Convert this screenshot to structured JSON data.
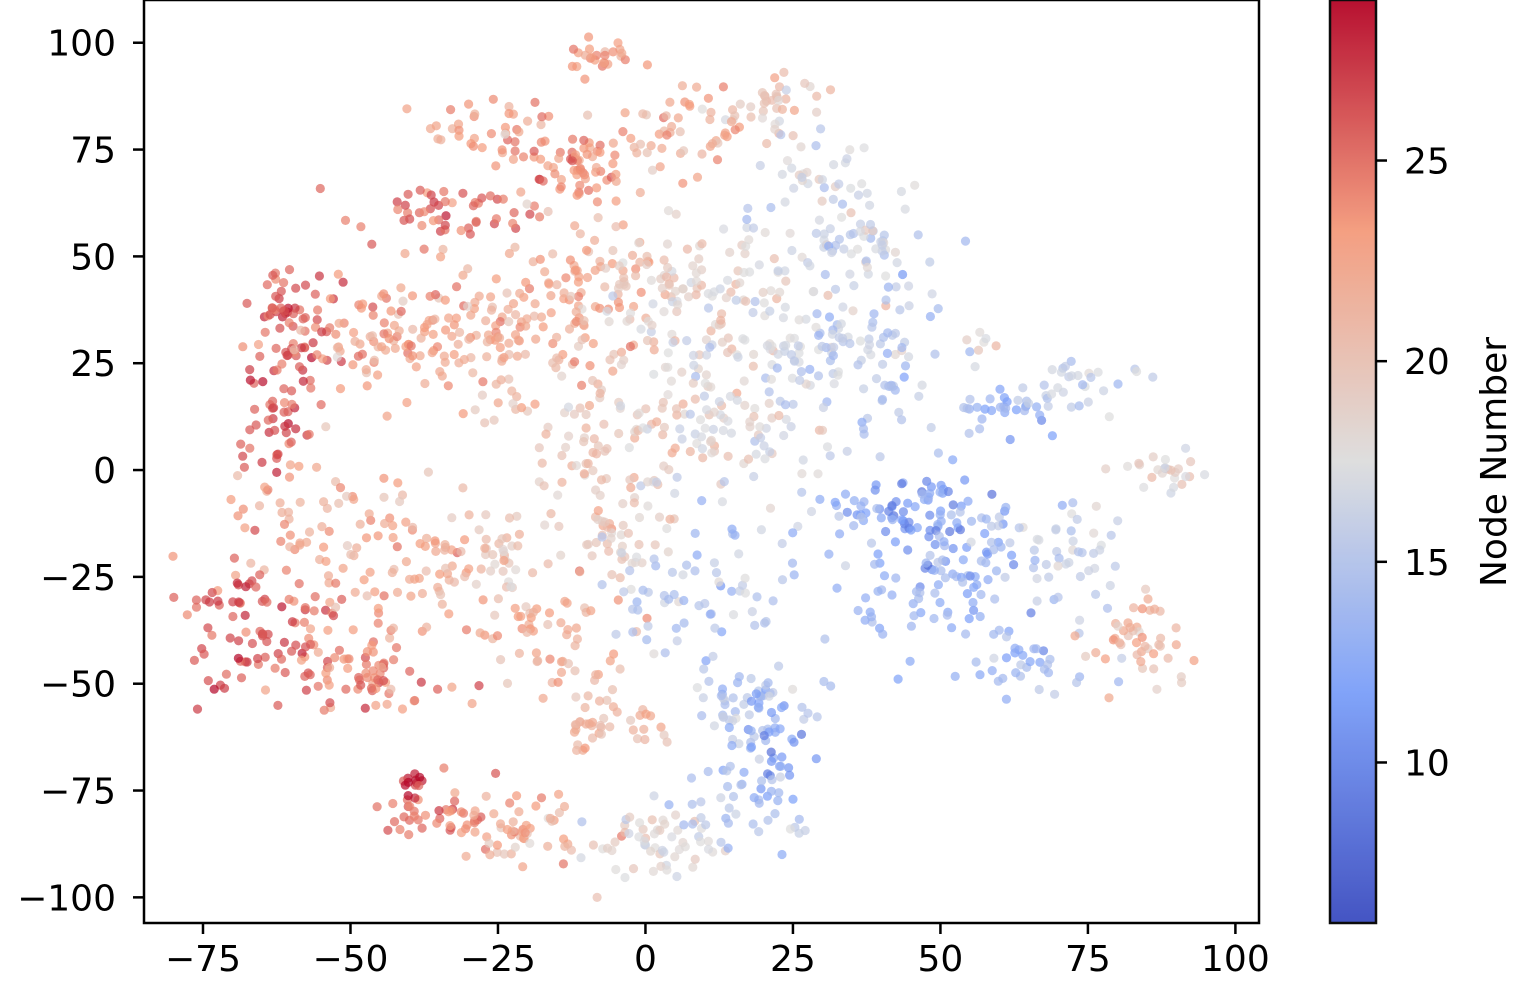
{
  "chart_data": {
    "type": "scatter",
    "title": "",
    "xlabel": "",
    "ylabel": "",
    "xlim": [
      -85,
      104
    ],
    "ylim": [
      -106,
      110
    ],
    "x_ticks": [
      -75,
      -50,
      -25,
      0,
      25,
      50,
      75,
      100
    ],
    "x_tick_labels": [
      "−75",
      "−50",
      "−25",
      "0",
      "25",
      "50",
      "75",
      "100"
    ],
    "y_ticks": [
      100,
      75,
      50,
      25,
      0,
      -25,
      -50,
      -75,
      -100
    ],
    "y_tick_labels": [
      "100",
      "75",
      "50",
      "25",
      "0",
      "−25",
      "−50",
      "−75",
      "−100"
    ],
    "grid": false,
    "point_alpha": 0.7,
    "colormap": "coolwarm",
    "colorbar": {
      "label": "Node Number",
      "range": [
        6,
        29
      ],
      "ticks": [
        10,
        15,
        20,
        25
      ],
      "tick_labels": [
        "10",
        "15",
        "20",
        "25"
      ],
      "low_color": "#3b4cc0",
      "mid_color": "#dddddd",
      "high_color": "#b40426"
    },
    "series": [
      {
        "clusters": [
          {
            "cx": -8,
            "cy": 97,
            "sx": 3,
            "sy": 3,
            "n": 25,
            "value": 23
          },
          {
            "cx": -25,
            "cy": 80,
            "sx": 6,
            "sy": 4,
            "n": 40,
            "value": 23
          },
          {
            "cx": -12,
            "cy": 70,
            "sx": 5,
            "sy": 5,
            "n": 60,
            "value": 24
          },
          {
            "cx": 5,
            "cy": 78,
            "sx": 6,
            "sy": 5,
            "n": 50,
            "value": 22
          },
          {
            "cx": 22,
            "cy": 85,
            "sx": 6,
            "sy": 4,
            "n": 35,
            "value": 20
          },
          {
            "cx": 30,
            "cy": 75,
            "sx": 5,
            "sy": 8,
            "n": 30,
            "value": 17
          },
          {
            "cx": -35,
            "cy": 60,
            "sx": 7,
            "sy": 4,
            "n": 50,
            "value": 25
          },
          {
            "cx": -60,
            "cy": 35,
            "sx": 4,
            "sy": 6,
            "n": 60,
            "value": 26
          },
          {
            "cx": -63,
            "cy": 15,
            "sx": 3,
            "sy": 8,
            "n": 50,
            "value": 26
          },
          {
            "cx": -45,
            "cy": 30,
            "sx": 7,
            "sy": 7,
            "n": 80,
            "value": 23
          },
          {
            "cx": -25,
            "cy": 30,
            "sx": 9,
            "sy": 9,
            "n": 100,
            "value": 22
          },
          {
            "cx": -10,
            "cy": 45,
            "sx": 8,
            "sy": 9,
            "n": 90,
            "value": 22
          },
          {
            "cx": 10,
            "cy": 40,
            "sx": 10,
            "sy": 10,
            "n": 110,
            "value": 19
          },
          {
            "cx": 25,
            "cy": 30,
            "sx": 8,
            "sy": 10,
            "n": 90,
            "value": 17
          },
          {
            "cx": 35,
            "cy": 55,
            "sx": 8,
            "sy": 6,
            "n": 70,
            "value": 16
          },
          {
            "cx": 40,
            "cy": 25,
            "sx": 6,
            "sy": 10,
            "n": 60,
            "value": 15
          },
          {
            "cx": -5,
            "cy": 10,
            "sx": 12,
            "sy": 8,
            "n": 100,
            "value": 20
          },
          {
            "cx": 15,
            "cy": 10,
            "sx": 9,
            "sy": 8,
            "n": 70,
            "value": 17
          },
          {
            "cx": -55,
            "cy": -10,
            "sx": 9,
            "sy": 7,
            "n": 60,
            "value": 22
          },
          {
            "cx": -70,
            "cy": -35,
            "sx": 5,
            "sy": 8,
            "n": 60,
            "value": 26
          },
          {
            "cx": -55,
            "cy": -40,
            "sx": 6,
            "sy": 8,
            "n": 60,
            "value": 25
          },
          {
            "cx": -45,
            "cy": -48,
            "sx": 5,
            "sy": 5,
            "n": 40,
            "value": 24
          },
          {
            "cx": -38,
            "cy": -25,
            "sx": 7,
            "sy": 7,
            "n": 60,
            "value": 22
          },
          {
            "cx": -25,
            "cy": -20,
            "sx": 5,
            "sy": 6,
            "n": 40,
            "value": 20
          },
          {
            "cx": -15,
            "cy": -40,
            "sx": 7,
            "sy": 9,
            "n": 60,
            "value": 22
          },
          {
            "cx": -5,
            "cy": -15,
            "sx": 6,
            "sy": 8,
            "n": 50,
            "value": 19
          },
          {
            "cx": 10,
            "cy": -30,
            "sx": 8,
            "sy": 9,
            "n": 70,
            "value": 15
          },
          {
            "cx": 18,
            "cy": -55,
            "sx": 6,
            "sy": 6,
            "n": 50,
            "value": 15
          },
          {
            "cx": 22,
            "cy": -65,
            "sx": 4,
            "sy": 6,
            "n": 40,
            "value": 12
          },
          {
            "cx": -8,
            "cy": -60,
            "sx": 7,
            "sy": 6,
            "n": 40,
            "value": 21
          },
          {
            "cx": -35,
            "cy": -80,
            "sx": 5,
            "sy": 4,
            "n": 40,
            "value": 25
          },
          {
            "cx": -20,
            "cy": -85,
            "sx": 6,
            "sy": 4,
            "n": 50,
            "value": 22
          },
          {
            "cx": 0,
            "cy": -88,
            "sx": 7,
            "sy": 4,
            "n": 60,
            "value": 18
          },
          {
            "cx": 15,
            "cy": -80,
            "sx": 6,
            "sy": 5,
            "n": 40,
            "value": 15
          },
          {
            "cx": -39,
            "cy": -73,
            "sx": 1.2,
            "sy": 1.2,
            "n": 12,
            "value": 28
          },
          {
            "cx": 60,
            "cy": 15,
            "sx": 5,
            "sy": 3,
            "n": 30,
            "value": 13
          },
          {
            "cx": 74,
            "cy": 20,
            "sx": 5,
            "sy": 3,
            "n": 30,
            "value": 16
          },
          {
            "cx": 57,
            "cy": 31,
            "sx": 1.5,
            "sy": 1,
            "n": 6,
            "value": 18
          },
          {
            "cx": 88,
            "cy": 0,
            "sx": 4,
            "sy": 2,
            "n": 25,
            "value": 18
          },
          {
            "cx": 45,
            "cy": -10,
            "sx": 6,
            "sy": 5,
            "n": 60,
            "value": 11
          },
          {
            "cx": 55,
            "cy": -20,
            "sx": 6,
            "sy": 8,
            "n": 60,
            "value": 13
          },
          {
            "cx": 45,
            "cy": -30,
            "sx": 6,
            "sy": 6,
            "n": 40,
            "value": 13
          },
          {
            "cx": 70,
            "cy": -20,
            "sx": 6,
            "sy": 6,
            "n": 50,
            "value": 16
          },
          {
            "cx": 65,
            "cy": -45,
            "sx": 6,
            "sy": 4,
            "n": 35,
            "value": 14
          },
          {
            "cx": 85,
            "cy": -40,
            "sx": 5,
            "sy": 5,
            "n": 45,
            "value": 21
          },
          {
            "cx": 35,
            "cy": -10,
            "sx": 3,
            "sy": 3,
            "n": 15,
            "value": 13
          }
        ]
      }
    ]
  }
}
